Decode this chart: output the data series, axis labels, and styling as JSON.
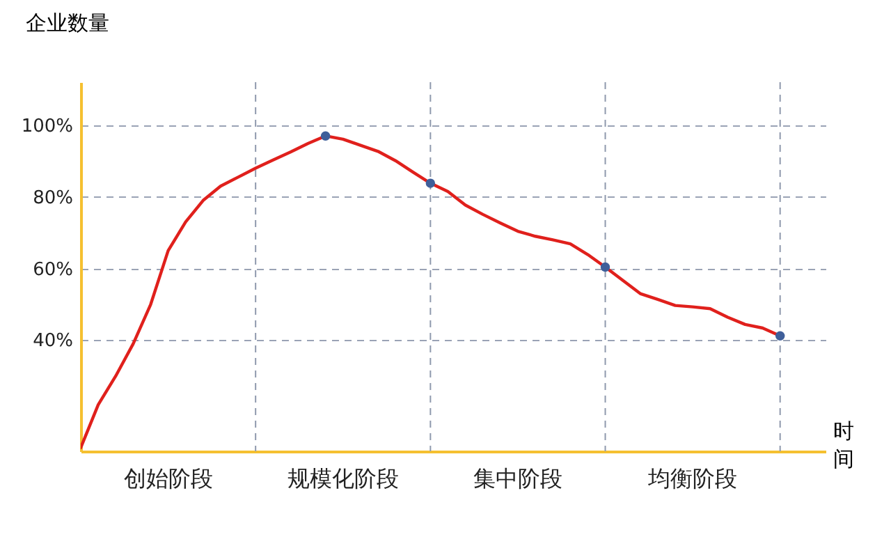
{
  "chart_data": {
    "type": "line",
    "ylabel": "企业数量",
    "xlabel": "时间",
    "categories": [
      null,
      null,
      null,
      null,
      null,
      null,
      null,
      null,
      null,
      null,
      null,
      null,
      null,
      null,
      null,
      null,
      null,
      null,
      null,
      null,
      null,
      null,
      null,
      null,
      null,
      null,
      null,
      null,
      null,
      null,
      null,
      null,
      null,
      null,
      null,
      null,
      null,
      null,
      null,
      null,
      null
    ],
    "ylim": [
      9,
      112
    ],
    "yticks": [
      {
        "value": 40,
        "label": "40%"
      },
      {
        "value": 60,
        "label": "60%"
      },
      {
        "value": 80,
        "label": "80%"
      },
      {
        "value": 100,
        "label": "100%"
      }
    ],
    "grid": true,
    "legend": false,
    "annotations": [
      "创始阶段",
      "规模化阶段",
      "集中阶段",
      "均衡阶段"
    ],
    "series": [
      {
        "type": "line",
        "color": "#e0201c",
        "marker": "none",
        "line_style": "solid",
        "values": [
          10,
          22,
          30,
          39,
          50,
          65,
          73,
          79,
          83,
          85.5,
          88,
          90.3,
          92.5,
          94.9,
          97,
          96.1,
          94.4,
          92.7,
          90.1,
          86.9,
          83.8,
          81.5,
          77.7,
          75.1,
          72.7,
          70.4,
          69,
          68,
          66.9,
          63.9,
          60.4,
          56.7,
          53,
          51.4,
          49.7,
          49.3,
          48.8,
          46.4,
          44.4,
          43.4,
          41.2
        ]
      },
      {
        "type": "scatter",
        "color": "#3f5f9a",
        "marker": "circle",
        "values": [
          null,
          null,
          null,
          null,
          null,
          null,
          null,
          null,
          null,
          null,
          null,
          null,
          null,
          null,
          97,
          null,
          null,
          null,
          null,
          null,
          83.8,
          null,
          null,
          null,
          null,
          null,
          null,
          null,
          null,
          null,
          60.4,
          null,
          null,
          null,
          null,
          null,
          null,
          null,
          null,
          null,
          41.2
        ]
      }
    ]
  }
}
